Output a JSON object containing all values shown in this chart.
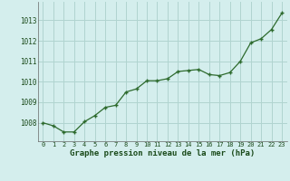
{
  "x": [
    0,
    1,
    2,
    3,
    4,
    5,
    6,
    7,
    8,
    9,
    10,
    11,
    12,
    13,
    14,
    15,
    16,
    17,
    18,
    19,
    20,
    21,
    22,
    23
  ],
  "y": [
    1008.0,
    1007.85,
    1007.55,
    1007.55,
    1008.05,
    1008.35,
    1008.75,
    1008.85,
    1009.5,
    1009.65,
    1010.05,
    1010.05,
    1010.15,
    1010.5,
    1010.55,
    1010.6,
    1010.35,
    1010.3,
    1010.45,
    1011.0,
    1011.9,
    1012.1,
    1012.55,
    1013.35
  ],
  "line_color": "#2d6a2d",
  "marker_color": "#2d6a2d",
  "bg_color": "#d4eeed",
  "grid_color": "#b0d4d0",
  "xlabel": "Graphe pression niveau de la mer (hPa)",
  "xlabel_color": "#1a4a1a",
  "ylabel_ticks": [
    1008,
    1009,
    1010,
    1011,
    1012,
    1013
  ],
  "xlim": [
    -0.5,
    23.5
  ],
  "ylim": [
    1007.1,
    1013.9
  ],
  "xtick_labels": [
    "0",
    "1",
    "2",
    "3",
    "4",
    "5",
    "6",
    "7",
    "8",
    "9",
    "10",
    "11",
    "12",
    "13",
    "14",
    "15",
    "16",
    "17",
    "18",
    "19",
    "20",
    "21",
    "22",
    "23"
  ]
}
